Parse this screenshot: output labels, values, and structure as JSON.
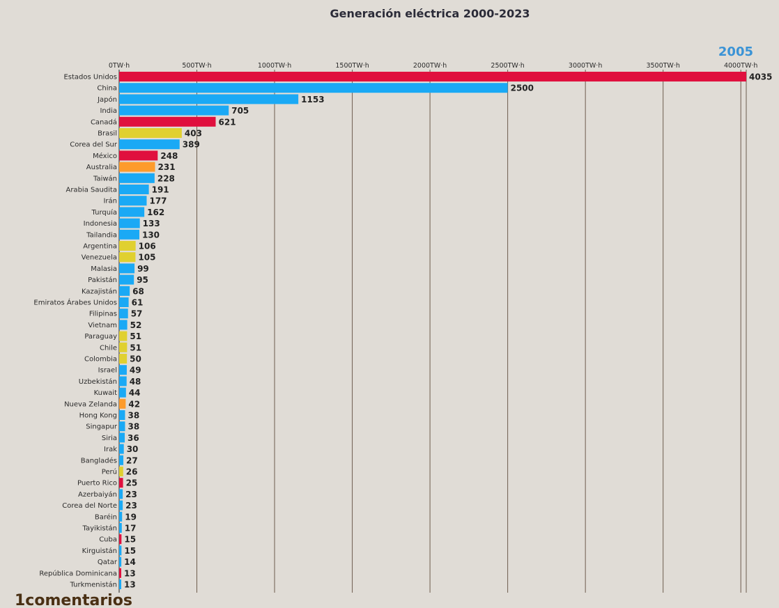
{
  "header": {
    "title": "Generación eléctrica 2000-2023",
    "year": "2005"
  },
  "footer": {
    "comments_label": "1comentarios"
  },
  "colors": {
    "background": "#e0dcd6",
    "north_america": "#e0103e",
    "asia": "#1aa9f5",
    "south_america": "#e0d030",
    "oceania": "#fd9b2c",
    "year_label": "#3a93d6",
    "gridline": "#5a4636"
  },
  "chart_data": {
    "type": "bar",
    "orientation": "horizontal",
    "title": "Generación eléctrica 2000-2023",
    "xlim": [
      0,
      4035
    ],
    "x_ticks": [
      {
        "value": 0,
        "label": "0TW·h"
      },
      {
        "value": 500,
        "label": "500TW·h"
      },
      {
        "value": 1000,
        "label": "1000TW·h"
      },
      {
        "value": 1500,
        "label": "1500TW·h"
      },
      {
        "value": 2000,
        "label": "2000TW·h"
      },
      {
        "value": 2500,
        "label": "2500TW·h"
      },
      {
        "value": 3000,
        "label": "3000TW·h"
      },
      {
        "value": 3500,
        "label": "3500TW·h"
      },
      {
        "value": 4000,
        "label": "4000TW·h"
      }
    ],
    "grid": true,
    "bars": [
      {
        "label": "Estados Unidos",
        "value": 4035,
        "color": "#e0103e"
      },
      {
        "label": "China",
        "value": 2500,
        "color": "#1aa9f5"
      },
      {
        "label": "Japón",
        "value": 1153,
        "color": "#1aa9f5"
      },
      {
        "label": "India",
        "value": 705,
        "color": "#1aa9f5"
      },
      {
        "label": "Canadá",
        "value": 621,
        "color": "#e0103e"
      },
      {
        "label": "Brasil",
        "value": 403,
        "color": "#e0d030"
      },
      {
        "label": "Corea del Sur",
        "value": 389,
        "color": "#1aa9f5"
      },
      {
        "label": "México",
        "value": 248,
        "color": "#e0103e"
      },
      {
        "label": "Australia",
        "value": 231,
        "color": "#fd9b2c"
      },
      {
        "label": "Taiwán",
        "value": 228,
        "color": "#1aa9f5"
      },
      {
        "label": "Arabia Saudita",
        "value": 191,
        "color": "#1aa9f5"
      },
      {
        "label": "Irán",
        "value": 177,
        "color": "#1aa9f5"
      },
      {
        "label": "Turquía",
        "value": 162,
        "color": "#1aa9f5"
      },
      {
        "label": "Indonesia",
        "value": 133,
        "color": "#1aa9f5"
      },
      {
        "label": "Tailandia",
        "value": 130,
        "color": "#1aa9f5"
      },
      {
        "label": "Argentina",
        "value": 106,
        "color": "#e0d030"
      },
      {
        "label": "Venezuela",
        "value": 105,
        "color": "#e0d030"
      },
      {
        "label": "Malasia",
        "value": 99,
        "color": "#1aa9f5"
      },
      {
        "label": "Pakistán",
        "value": 95,
        "color": "#1aa9f5"
      },
      {
        "label": "Kazajistán",
        "value": 68,
        "color": "#1aa9f5"
      },
      {
        "label": "Emiratos Árabes Unidos",
        "value": 61,
        "color": "#1aa9f5"
      },
      {
        "label": "Filipinas",
        "value": 57,
        "color": "#1aa9f5"
      },
      {
        "label": "Vietnam",
        "value": 52,
        "color": "#1aa9f5"
      },
      {
        "label": "Paraguay",
        "value": 51,
        "color": "#e0d030"
      },
      {
        "label": "Chile",
        "value": 51,
        "color": "#e0d030"
      },
      {
        "label": "Colombia",
        "value": 50,
        "color": "#e0d030"
      },
      {
        "label": "Israel",
        "value": 49,
        "color": "#1aa9f5"
      },
      {
        "label": "Uzbekistán",
        "value": 48,
        "color": "#1aa9f5"
      },
      {
        "label": "Kuwait",
        "value": 44,
        "color": "#1aa9f5"
      },
      {
        "label": "Nueva Zelanda",
        "value": 42,
        "color": "#fd9b2c"
      },
      {
        "label": "Hong Kong",
        "value": 38,
        "color": "#1aa9f5"
      },
      {
        "label": "Singapur",
        "value": 38,
        "color": "#1aa9f5"
      },
      {
        "label": "Siria",
        "value": 36,
        "color": "#1aa9f5"
      },
      {
        "label": "Irak",
        "value": 30,
        "color": "#1aa9f5"
      },
      {
        "label": "Bangladés",
        "value": 27,
        "color": "#1aa9f5"
      },
      {
        "label": "Perú",
        "value": 26,
        "color": "#e0d030"
      },
      {
        "label": "Puerto Rico",
        "value": 25,
        "color": "#e0103e"
      },
      {
        "label": "Azerbaiyán",
        "value": 23,
        "color": "#1aa9f5"
      },
      {
        "label": "Corea del Norte",
        "value": 23,
        "color": "#1aa9f5"
      },
      {
        "label": "Baréin",
        "value": 19,
        "color": "#1aa9f5"
      },
      {
        "label": "Tayikistán",
        "value": 17,
        "color": "#1aa9f5"
      },
      {
        "label": "Cuba",
        "value": 15,
        "color": "#e0103e"
      },
      {
        "label": "Kirguistán",
        "value": 15,
        "color": "#1aa9f5"
      },
      {
        "label": "Qatar",
        "value": 14,
        "color": "#1aa9f5"
      },
      {
        "label": "República Dominicana",
        "value": 13,
        "color": "#e0103e"
      },
      {
        "label": "Turkmenistán",
        "value": 13,
        "color": "#1aa9f5"
      }
    ]
  }
}
